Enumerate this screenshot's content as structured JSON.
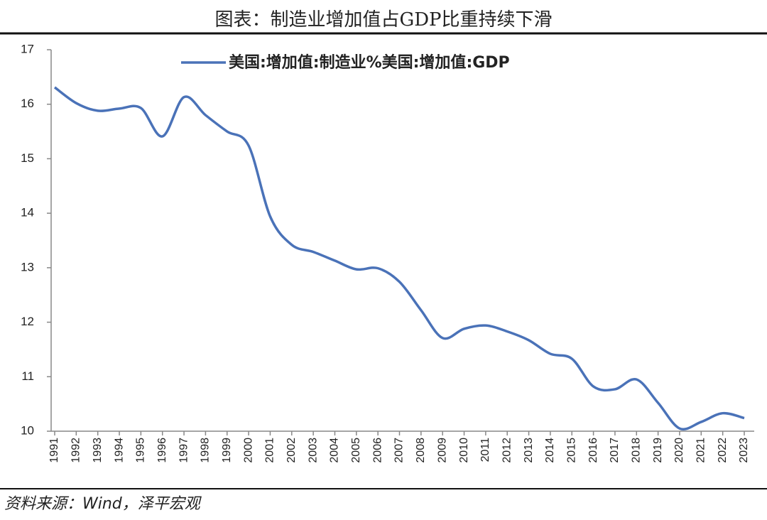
{
  "chart_data": {
    "type": "line",
    "title": "图表：制造业增加值占GDP比重持续下滑",
    "source": "资料来源：Wind，泽平宏观",
    "categories": [
      "1991",
      "1992",
      "1993",
      "1994",
      "1995",
      "1996",
      "1997",
      "1998",
      "1999",
      "2000",
      "2001",
      "2002",
      "2003",
      "2004",
      "2005",
      "2006",
      "2007",
      "2008",
      "2009",
      "2010",
      "2011",
      "2012",
      "2013",
      "2014",
      "2015",
      "2016",
      "2017",
      "2018",
      "2019",
      "2020",
      "2021",
      "2022",
      "2023"
    ],
    "series": [
      {
        "name": "美国:增加值:制造业%美国:增加值:GDP",
        "color": "#4a72b8",
        "values": [
          16.31,
          16.02,
          15.88,
          15.92,
          15.93,
          15.41,
          16.13,
          15.8,
          15.5,
          15.24,
          13.94,
          13.42,
          13.29,
          13.13,
          12.97,
          12.99,
          12.74,
          12.22,
          11.71,
          11.88,
          11.94,
          11.83,
          11.67,
          11.42,
          11.33,
          10.82,
          10.77,
          10.95,
          10.52,
          10.05,
          10.17,
          10.33,
          10.24
        ]
      }
    ],
    "ylim": [
      10,
      17
    ],
    "yticks": [
      10,
      11,
      12,
      13,
      14,
      15,
      16,
      17
    ]
  }
}
